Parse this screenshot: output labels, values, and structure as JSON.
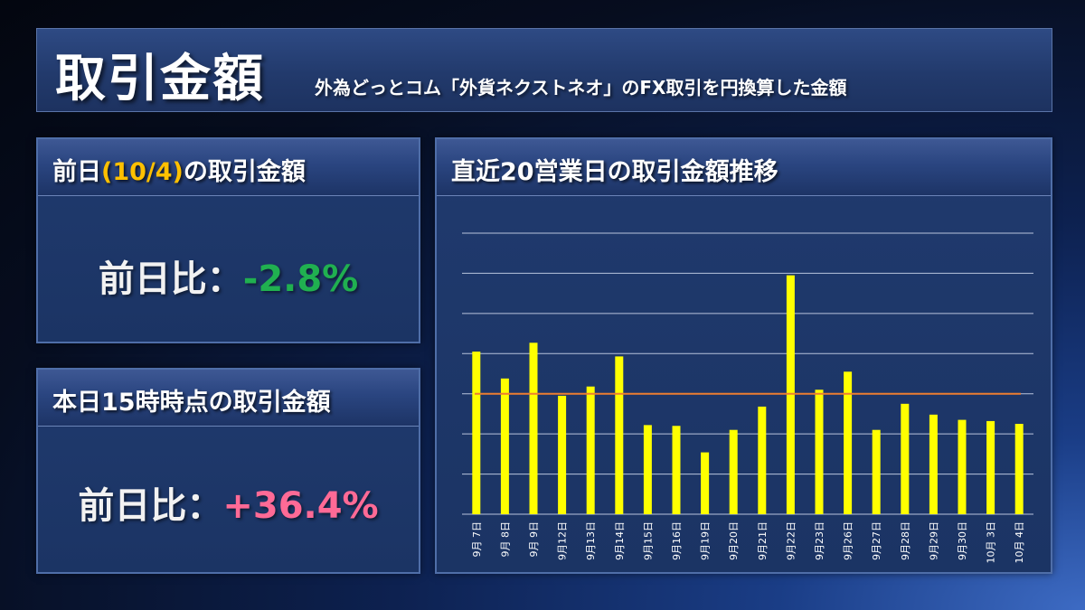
{
  "header": {
    "title": "取引金額",
    "subtitle": "外為どっとコム「外貨ネクストネオ」のFX取引を円換算した金額"
  },
  "prev_day_panel": {
    "title_before": "前日",
    "title_highlight": "(10/4)",
    "title_after": "の取引金額",
    "kpi_label": "前日比：",
    "kpi_value": "-2.8%"
  },
  "today_panel": {
    "title": "本日15時時点の取引金額",
    "kpi_label": "前日比：",
    "kpi_value": "+36.4%"
  },
  "chart_panel": {
    "title": "直近20営業日の取引金額推移"
  },
  "colors": {
    "bar": "#ffff00",
    "average_line": "#ed7d31",
    "negative": "#20b050",
    "positive": "#ff6a96",
    "highlight": "#ffc000"
  },
  "chart_data": {
    "type": "bar",
    "categories": [
      "9月 7日",
      "9月 8日",
      "9月 9日",
      "9月12日",
      "9月13日",
      "9月14日",
      "9月15日",
      "9月16日",
      "9月19日",
      "9月20日",
      "9月21日",
      "9月22日",
      "9月23日",
      "9月26日",
      "9月27日",
      "9月28日",
      "9月29日",
      "9月30日",
      "10月 3日",
      "10月 4日"
    ],
    "values": [
      4.05,
      3.38,
      4.27,
      2.95,
      3.18,
      3.93,
      2.22,
      2.2,
      1.54,
      2.1,
      2.68,
      5.95,
      3.1,
      3.55,
      2.1,
      2.75,
      2.48,
      2.35,
      2.32,
      2.25
    ],
    "average": 3.0,
    "ylim": [
      0,
      7
    ],
    "grid": true,
    "y_tick_labels_shown": false
  }
}
